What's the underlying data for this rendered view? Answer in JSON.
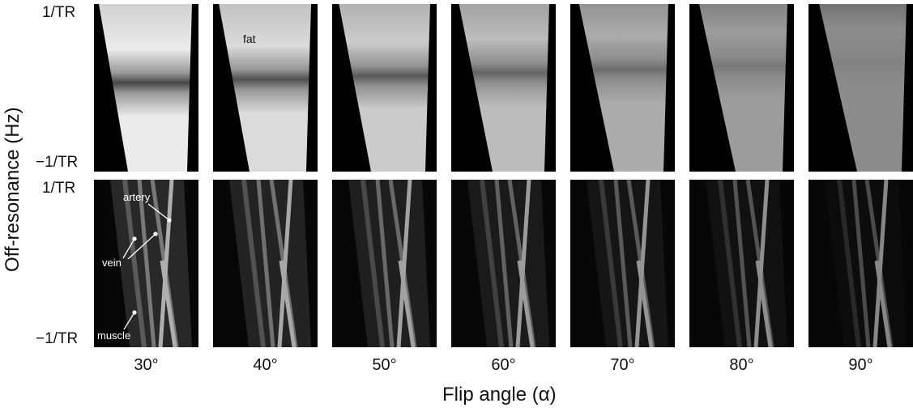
{
  "y_axis": {
    "label": "Off-resonance (Hz)",
    "tick_top": "1/TR",
    "tick_bottom": "−1/TR"
  },
  "x_axis": {
    "label": "Flip angle (α)",
    "flip_angles": [
      "30°",
      "40°",
      "50°",
      "60°",
      "70°",
      "80°",
      "90°"
    ]
  },
  "annotations": {
    "fat": "fat",
    "artery": "artery",
    "vein": "vein",
    "muscle": "muscle"
  },
  "colors": {
    "background": "#ffffff",
    "panel_background": "#000000",
    "text": "#111111",
    "annotation_text": "#ffffff"
  }
}
